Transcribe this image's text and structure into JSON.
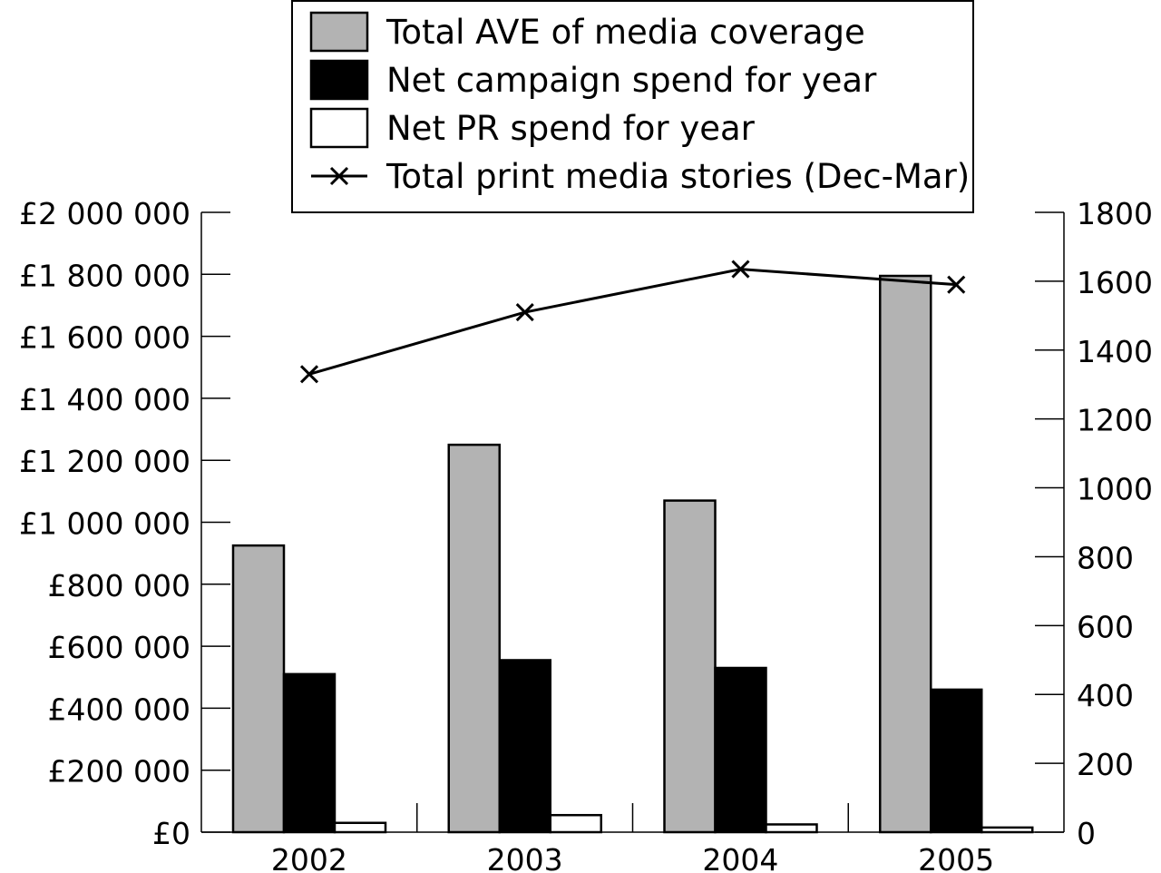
{
  "chart_data": {
    "type": "bar",
    "categories": [
      "2002",
      "2003",
      "2004",
      "2005"
    ],
    "series": [
      {
        "name": "Total AVE of media coverage",
        "kind": "bar",
        "axis": "left",
        "color": "#b3b3b3",
        "values": [
          925000,
          1250000,
          1070000,
          1795000
        ]
      },
      {
        "name": "Net campaign spend for year",
        "kind": "bar",
        "axis": "left",
        "color": "#000000",
        "values": [
          510000,
          555000,
          530000,
          460000
        ]
      },
      {
        "name": "Net PR spend for year",
        "kind": "bar",
        "axis": "left",
        "color": "#ffffff",
        "values": [
          30000,
          55000,
          25000,
          15000
        ]
      },
      {
        "name": "Total print media stories (Dec-Mar)",
        "kind": "line",
        "marker": "x",
        "axis": "right",
        "color": "#000000",
        "values": [
          1330,
          1510,
          1635,
          1590
        ]
      }
    ],
    "y_left": {
      "ylim": [
        0,
        2000000
      ],
      "ticks": [
        0,
        200000,
        400000,
        600000,
        800000,
        1000000,
        1200000,
        1400000,
        1600000,
        1800000,
        2000000
      ],
      "tick_labels": [
        "£0",
        "£200 000",
        "£400 000",
        "£600 000",
        "£800 000",
        "£1 000 000",
        "£1 200 000",
        "£1 400 000",
        "£1 600 000",
        "£1 800 000",
        "£2 000 000"
      ]
    },
    "y_right": {
      "ylim": [
        0,
        1800
      ],
      "ticks": [
        0,
        200,
        400,
        600,
        800,
        1000,
        1200,
        1400,
        1600,
        1800
      ],
      "tick_labels": [
        "0",
        "200",
        "400",
        "600",
        "800",
        "1000",
        "1200",
        "1400",
        "1600",
        "1800"
      ]
    },
    "legend_position": "top-center",
    "grid": false
  }
}
